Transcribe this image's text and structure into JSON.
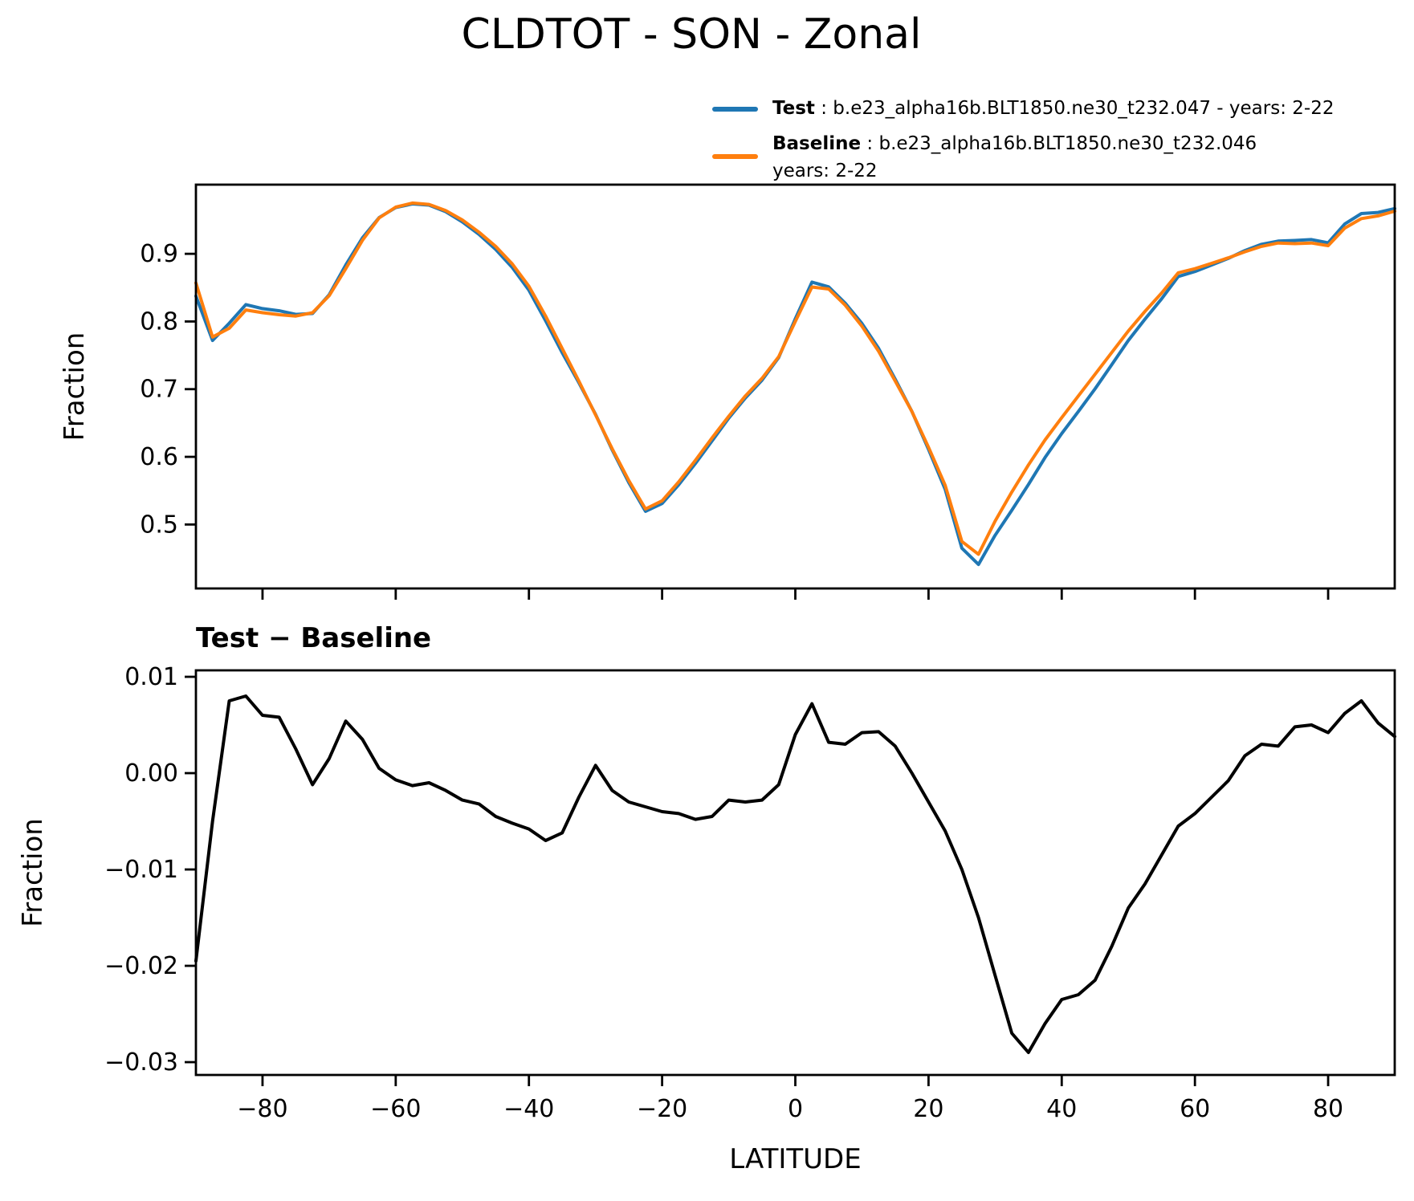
{
  "title": "CLDTOT - SON - Zonal",
  "legend": {
    "entries": [
      {
        "name": "Test",
        "detail": " : b.e23_alpha16b.BLT1850.ne30_t232.047 - years: 2-22",
        "line2": "",
        "color": "#1f77b4"
      },
      {
        "name": "Baseline",
        "detail": " : b.e23_alpha16b.BLT1850.ne30_t232.046",
        "line2": "years: 2-22",
        "color": "#ff7f0e"
      }
    ]
  },
  "chart_data": [
    {
      "type": "line",
      "panel": "top",
      "title": "",
      "xlabel": "",
      "ylabel": "Fraction",
      "xlim": [
        -90,
        90
      ],
      "ylim": [
        0.4055,
        1.0022
      ],
      "grid": false,
      "legend_position": "upper right, outside axes",
      "xticks": {
        "values": [
          -80,
          -60,
          -40,
          -20,
          0,
          20,
          40,
          60,
          80
        ],
        "labels": []
      },
      "yticks": {
        "values": [
          0.5,
          0.6,
          0.7,
          0.8,
          0.9
        ],
        "labels": [
          "0.5",
          "0.6",
          "0.7",
          "0.8",
          "0.9"
        ]
      },
      "x": [
        -90,
        -87.5,
        -85,
        -82.5,
        -80,
        -77.5,
        -75,
        -72.5,
        -70,
        -67.5,
        -65,
        -62.5,
        -60,
        -57.5,
        -55,
        -52.5,
        -50,
        -47.5,
        -45,
        -42.5,
        -40,
        -37.5,
        -35,
        -32.5,
        -30,
        -27.5,
        -25,
        -22.5,
        -20,
        -17.5,
        -15,
        -12.5,
        -10,
        -7.5,
        -5,
        -2.5,
        0,
        2.5,
        5,
        7.5,
        10,
        12.5,
        15,
        17.5,
        20,
        22.5,
        25,
        27.5,
        30,
        32.5,
        35,
        37.5,
        40,
        42.5,
        45,
        47.5,
        50,
        52.5,
        55,
        57.5,
        60,
        62.5,
        65,
        67.5,
        70,
        72.5,
        75,
        77.5,
        80,
        82.5,
        85,
        87.5,
        90
      ],
      "series": [
        {
          "name": "Test",
          "color": "#1f77b4",
          "linewidth": 4,
          "values": [
            0.8375,
            0.772,
            0.7975,
            0.825,
            0.819,
            0.8158,
            0.8105,
            0.8118,
            0.8395,
            0.8834,
            0.9235,
            0.9535,
            0.9683,
            0.9737,
            0.972,
            0.9622,
            0.9472,
            0.9288,
            0.9065,
            0.8798,
            0.8462,
            0.801,
            0.7538,
            0.7095,
            0.6628,
            0.6102,
            0.562,
            0.5195,
            0.531,
            0.5588,
            0.5902,
            0.6235,
            0.6572,
            0.687,
            0.7132,
            0.7468,
            0.804,
            0.8582,
            0.8512,
            0.827,
            0.7972,
            0.7603,
            0.7148,
            0.667,
            0.611,
            0.552,
            0.465,
            0.441,
            0.484,
            0.521,
            0.559,
            0.599,
            0.6345,
            0.667,
            0.7005,
            0.736,
            0.772,
            0.8035,
            0.8335,
            0.8665,
            0.8738,
            0.8835,
            0.8932,
            0.9048,
            0.914,
            0.9188,
            0.9198,
            0.921,
            0.9162,
            0.9442,
            0.9595,
            0.9612,
            0.9668
          ]
        },
        {
          "name": "Baseline",
          "color": "#ff7f0e",
          "linewidth": 4,
          "values": [
            0.857,
            0.777,
            0.79,
            0.817,
            0.813,
            0.81,
            0.808,
            0.813,
            0.838,
            0.878,
            0.92,
            0.953,
            0.969,
            0.975,
            0.973,
            0.964,
            0.95,
            0.932,
            0.911,
            0.885,
            0.852,
            0.808,
            0.76,
            0.712,
            0.662,
            0.612,
            0.565,
            0.523,
            0.535,
            0.563,
            0.595,
            0.628,
            0.66,
            0.69,
            0.716,
            0.748,
            0.8,
            0.851,
            0.848,
            0.824,
            0.793,
            0.756,
            0.712,
            0.667,
            0.614,
            0.558,
            0.475,
            0.456,
            0.505,
            0.548,
            0.588,
            0.625,
            0.658,
            0.69,
            0.722,
            0.754,
            0.786,
            0.815,
            0.842,
            0.872,
            0.878,
            0.886,
            0.894,
            0.903,
            0.911,
            0.916,
            0.915,
            0.916,
            0.912,
            0.938,
            0.952,
            0.956,
            0.963
          ]
        }
      ]
    },
    {
      "type": "line",
      "panel": "bottom",
      "title": "Test − Baseline",
      "xlabel": "LATITUDE",
      "ylabel": "Fraction",
      "xlim": [
        -90,
        90
      ],
      "ylim": [
        -0.03133,
        0.01067
      ],
      "grid": false,
      "xticks": {
        "values": [
          -80,
          -60,
          -40,
          -20,
          0,
          20,
          40,
          60,
          80
        ],
        "labels": [
          "−80",
          "−60",
          "−40",
          "−20",
          "0",
          "20",
          "40",
          "60",
          "80"
        ]
      },
      "yticks": {
        "values": [
          0.01,
          0.0,
          -0.01,
          -0.02,
          -0.03
        ],
        "labels": [
          "0.01",
          "0.00",
          "−0.01",
          "−0.02",
          "−0.03"
        ]
      },
      "x": [
        -90,
        -87.5,
        -85,
        -82.5,
        -80,
        -77.5,
        -75,
        -72.5,
        -70,
        -67.5,
        -65,
        -62.5,
        -60,
        -57.5,
        -55,
        -52.5,
        -50,
        -47.5,
        -45,
        -42.5,
        -40,
        -37.5,
        -35,
        -32.5,
        -30,
        -27.5,
        -25,
        -22.5,
        -20,
        -17.5,
        -15,
        -12.5,
        -10,
        -7.5,
        -5,
        -2.5,
        0,
        2.5,
        5,
        7.5,
        10,
        12.5,
        15,
        17.5,
        20,
        22.5,
        25,
        27.5,
        30,
        32.5,
        35,
        37.5,
        40,
        42.5,
        45,
        47.5,
        50,
        52.5,
        55,
        57.5,
        60,
        62.5,
        65,
        67.5,
        70,
        72.5,
        75,
        77.5,
        80,
        82.5,
        85,
        87.5,
        90
      ],
      "series": [
        {
          "name": "Test − Baseline",
          "color": "#000000",
          "linewidth": 4,
          "values": [
            -0.0195,
            -0.005,
            0.0075,
            0.008,
            0.006,
            0.0058,
            0.0025,
            -0.0012,
            0.0015,
            0.0054,
            0.0035,
            0.0005,
            -0.0007,
            -0.0013,
            -0.001,
            -0.0018,
            -0.0028,
            -0.0032,
            -0.0045,
            -0.0052,
            -0.0058,
            -0.007,
            -0.0062,
            -0.0025,
            0.0008,
            -0.0018,
            -0.003,
            -0.0035,
            -0.004,
            -0.0042,
            -0.0048,
            -0.0045,
            -0.0028,
            -0.003,
            -0.0028,
            -0.0012,
            0.004,
            0.0072,
            0.0032,
            0.003,
            0.0042,
            0.0043,
            0.0028,
            0.0,
            -0.003,
            -0.006,
            -0.01,
            -0.015,
            -0.021,
            -0.027,
            -0.029,
            -0.026,
            -0.0235,
            -0.023,
            -0.0215,
            -0.018,
            -0.014,
            -0.0115,
            -0.0085,
            -0.0055,
            -0.0042,
            -0.0025,
            -0.0008,
            0.0018,
            0.003,
            0.0028,
            0.0048,
            0.005,
            0.0042,
            0.0062,
            0.0075,
            0.0052,
            0.0038
          ]
        }
      ]
    }
  ]
}
